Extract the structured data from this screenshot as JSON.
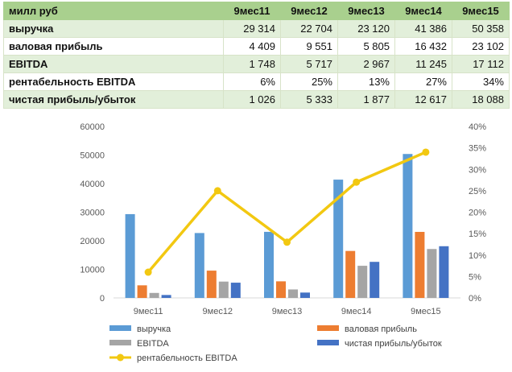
{
  "table": {
    "header": {
      "label": "милл руб",
      "columns": [
        "9мес11",
        "9мес12",
        "9мес13",
        "9мес14",
        "9мес15"
      ]
    },
    "rows": [
      {
        "label": "выручка",
        "values": [
          "29 314",
          "22 704",
          "23 120",
          "41 386",
          "50 358"
        ]
      },
      {
        "label": "валовая прибыль",
        "values": [
          "4 409",
          "9 551",
          "5 805",
          "16 432",
          "23 102"
        ]
      },
      {
        "label": "EBITDA",
        "values": [
          "1 748",
          "5 717",
          "2 967",
          "11 245",
          "17 112"
        ]
      },
      {
        "label": "рентабельность EBITDA",
        "values": [
          "6%",
          "25%",
          "13%",
          "27%",
          "34%"
        ]
      },
      {
        "label": "чистая прибыль/убыток",
        "values": [
          "1 026",
          "5 333",
          "1 877",
          "12 617",
          "18 088"
        ]
      }
    ]
  },
  "chart_data": {
    "type": "bar",
    "categories": [
      "9мес11",
      "9мес12",
      "9мес13",
      "9мес14",
      "9мес15"
    ],
    "series": [
      {
        "name": "выручка",
        "values": [
          29314,
          22704,
          23120,
          41386,
          50358
        ],
        "color": "#5b9bd5"
      },
      {
        "name": "валовая прибыль",
        "values": [
          4409,
          9551,
          5805,
          16432,
          23102
        ],
        "color": "#ed7d31"
      },
      {
        "name": "EBITDA",
        "values": [
          1748,
          5717,
          2967,
          11245,
          17112
        ],
        "color": "#a5a5a5"
      },
      {
        "name": "чистая прибыль/убыток",
        "values": [
          1026,
          5333,
          1877,
          12617,
          18088
        ],
        "color": "#4472c4"
      }
    ],
    "line_series": {
      "name": "рентабельность EBITDA",
      "values": [
        0.06,
        0.25,
        0.13,
        0.27,
        0.34
      ],
      "color": "#f2c811",
      "axis": "secondary"
    },
    "y_ticks": [
      "0",
      "10000",
      "20000",
      "30000",
      "40000",
      "50000",
      "60000"
    ],
    "ylim": [
      0,
      60000
    ],
    "y2_ticks": [
      "0%",
      "5%",
      "10%",
      "15%",
      "20%",
      "25%",
      "30%",
      "35%",
      "40%"
    ],
    "y2lim": [
      0,
      0.4
    ],
    "legend_order": [
      "выручка",
      "валовая прибыль",
      "EBITDA",
      "чистая прибыль/убыток",
      "рентабельность EBITDA"
    ],
    "legend": "bottom",
    "grid": false
  }
}
